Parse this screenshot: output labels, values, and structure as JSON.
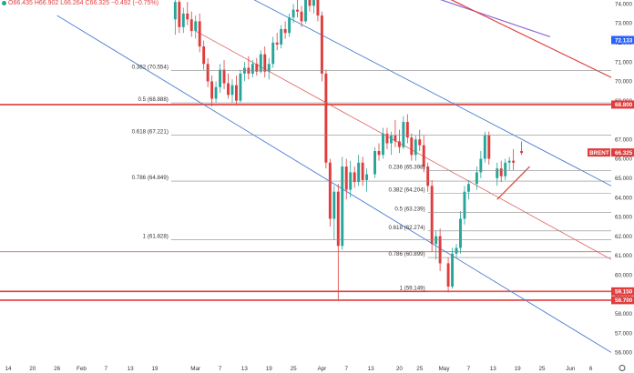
{
  "ohlc_bar": {
    "open": "O66.435",
    "high": "H66.902",
    "low": "L66.264",
    "close": "C66.325",
    "change": "−0.492 (−0.75%)"
  },
  "chart_data": {
    "type": "candlestick",
    "symbol": "BRENT",
    "last_price": "66.325",
    "y_range": [
      55.5,
      74.2
    ],
    "y_ticks": [
      "74.000",
      "73.000",
      "72.000",
      "71.000",
      "70.000",
      "69.000",
      "67.000",
      "66.000",
      "65.000",
      "64.000",
      "63.000",
      "62.000",
      "61.000",
      "60.000",
      "59.000",
      "58.000",
      "57.000",
      "56.000"
    ],
    "x_labels": [
      {
        "label": "14",
        "day": 0
      },
      {
        "label": "20",
        "day": 6
      },
      {
        "label": "26",
        "day": 12
      },
      {
        "label": "Feb",
        "day": 18
      },
      {
        "label": "7",
        "day": 24
      },
      {
        "label": "13",
        "day": 30
      },
      {
        "label": "19",
        "day": 36
      },
      {
        "label": "Mar",
        "day": 46
      },
      {
        "label": "7",
        "day": 52
      },
      {
        "label": "13",
        "day": 58
      },
      {
        "label": "19",
        "day": 64
      },
      {
        "label": "25",
        "day": 70
      },
      {
        "label": "Apr",
        "day": 77
      },
      {
        "label": "7",
        "day": 83
      },
      {
        "label": "13",
        "day": 89
      },
      {
        "label": "20",
        "day": 96
      },
      {
        "label": "25",
        "day": 101
      },
      {
        "label": "May",
        "day": 107
      },
      {
        "label": "7",
        "day": 113
      },
      {
        "label": "13",
        "day": 119
      },
      {
        "label": "19",
        "day": 125
      },
      {
        "label": "25",
        "day": 131
      },
      {
        "label": "Jun",
        "day": 138
      },
      {
        "label": "6",
        "day": 143
      }
    ],
    "x_range": [
      -2,
      148
    ],
    "price_tags": [
      {
        "label": "72.133",
        "value": 72.133,
        "color": "#2962ff"
      },
      {
        "label": "68.800",
        "value": 68.8,
        "color": "#e03c3c"
      },
      {
        "label": "66.325",
        "value": 66.325,
        "color": "#e03c3c",
        "name": "BRENT"
      },
      {
        "label": "59.150",
        "value": 59.15,
        "color": "#e03c3c"
      },
      {
        "label": "58.700",
        "value": 58.7,
        "color": "#e03c3c"
      }
    ],
    "horizontal_lines": [
      {
        "value": 68.8,
        "color": "#e03c3c",
        "width": 1.6
      },
      {
        "value": 59.15,
        "color": "#e03c3c",
        "width": 1.6
      },
      {
        "value": 58.7,
        "color": "#e03c3c",
        "width": 1.6
      },
      {
        "value": 61.2,
        "color": "#e06060",
        "width": 0.8
      }
    ],
    "fib_left": {
      "x_start": 40,
      "x_end": 148,
      "levels": [
        {
          "label": "0.382 (70.554)",
          "value": 70.554
        },
        {
          "label": "0.5 (68.888)",
          "value": 68.888
        },
        {
          "label": "0.618 (67.221)",
          "value": 67.221
        },
        {
          "label": "0.786 (64.849)",
          "value": 64.849
        },
        {
          "label": "1 (61.828)",
          "value": 61.828
        }
      ]
    },
    "fib_right": {
      "x_start": 103,
      "x_end": 148,
      "levels": [
        {
          "label": "0.236 (65.398)",
          "value": 65.398
        },
        {
          "label": "0.382 (64.204)",
          "value": 64.204
        },
        {
          "label": "0.5 (63.239)",
          "value": 63.239
        },
        {
          "label": "0.618 (62.274)",
          "value": 62.274
        },
        {
          "label": "0.786 (60.899)",
          "value": 60.899
        },
        {
          "label": "1 (59.149)",
          "value": 59.149
        }
      ]
    },
    "trend_lines": [
      {
        "x1": 12,
        "y1": 73.4,
        "x2": 148,
        "y2": 56.0,
        "color": "#4a7fd4",
        "width": 0.9
      },
      {
        "x1": 55,
        "y1": 74.8,
        "x2": 148,
        "y2": 64.6,
        "color": "#4a7fd4",
        "width": 0.9
      },
      {
        "x1": 46,
        "y1": 72.6,
        "x2": 148,
        "y2": 60.8,
        "color": "#e06060",
        "width": 0.8
      },
      {
        "x1": 98,
        "y1": 74.8,
        "x2": 133,
        "y2": 72.3,
        "color": "#8e6ad8",
        "width": 1.2
      },
      {
        "x1": 103,
        "y1": 74.8,
        "x2": 148,
        "y2": 70.2,
        "color": "#e03c3c",
        "width": 1.2
      },
      {
        "x1": 120,
        "y1": 63.9,
        "x2": 128,
        "y2": 65.6,
        "color": "#e03c3c",
        "width": 1.2
      }
    ],
    "candles": [
      {
        "d": 41,
        "o": 73.2,
        "h": 74.5,
        "l": 72.4,
        "c": 74.1
      },
      {
        "d": 42,
        "o": 74.1,
        "h": 74.6,
        "l": 72.5,
        "c": 72.8
      },
      {
        "d": 43,
        "o": 72.8,
        "h": 73.8,
        "l": 72.5,
        "c": 73.5
      },
      {
        "d": 44,
        "o": 73.5,
        "h": 74.1,
        "l": 72.9,
        "c": 73.2
      },
      {
        "d": 45,
        "o": 73.2,
        "h": 73.6,
        "l": 72.3,
        "c": 72.6
      },
      {
        "d": 46,
        "o": 72.6,
        "h": 73.4,
        "l": 72.2,
        "c": 73.1
      },
      {
        "d": 47,
        "o": 73.1,
        "h": 73.5,
        "l": 71.5,
        "c": 71.8
      },
      {
        "d": 48,
        "o": 71.8,
        "h": 72.1,
        "l": 70.6,
        "c": 70.9
      },
      {
        "d": 49,
        "o": 70.9,
        "h": 71.2,
        "l": 69.7,
        "c": 70.0
      },
      {
        "d": 50,
        "o": 70.0,
        "h": 70.3,
        "l": 68.7,
        "c": 69.1
      },
      {
        "d": 51,
        "o": 69.1,
        "h": 70.0,
        "l": 68.9,
        "c": 69.7
      },
      {
        "d": 52,
        "o": 69.7,
        "h": 70.9,
        "l": 69.4,
        "c": 70.6
      },
      {
        "d": 53,
        "o": 70.6,
        "h": 71.1,
        "l": 69.6,
        "c": 69.9
      },
      {
        "d": 54,
        "o": 69.9,
        "h": 70.4,
        "l": 69.1,
        "c": 69.3
      },
      {
        "d": 55,
        "o": 69.3,
        "h": 70.1,
        "l": 68.9,
        "c": 69.8
      },
      {
        "d": 56,
        "o": 69.8,
        "h": 70.3,
        "l": 68.8,
        "c": 69.0
      },
      {
        "d": 57,
        "o": 69.0,
        "h": 70.6,
        "l": 68.9,
        "c": 70.4
      },
      {
        "d": 58,
        "o": 70.4,
        "h": 71.0,
        "l": 70.0,
        "c": 70.7
      },
      {
        "d": 59,
        "o": 70.7,
        "h": 71.3,
        "l": 70.1,
        "c": 70.4
      },
      {
        "d": 60,
        "o": 70.4,
        "h": 71.1,
        "l": 70.2,
        "c": 70.9
      },
      {
        "d": 61,
        "o": 70.9,
        "h": 71.2,
        "l": 70.3,
        "c": 70.5
      },
      {
        "d": 62,
        "o": 70.5,
        "h": 71.6,
        "l": 70.4,
        "c": 71.4
      },
      {
        "d": 63,
        "o": 71.4,
        "h": 71.8,
        "l": 70.2,
        "c": 70.5
      },
      {
        "d": 64,
        "o": 70.5,
        "h": 71.2,
        "l": 70.1,
        "c": 70.9
      },
      {
        "d": 65,
        "o": 70.9,
        "h": 72.3,
        "l": 70.7,
        "c": 72.0
      },
      {
        "d": 66,
        "o": 72.0,
        "h": 72.5,
        "l": 71.6,
        "c": 71.9
      },
      {
        "d": 67,
        "o": 71.9,
        "h": 72.9,
        "l": 71.7,
        "c": 72.7
      },
      {
        "d": 68,
        "o": 72.7,
        "h": 73.1,
        "l": 72.2,
        "c": 72.5
      },
      {
        "d": 69,
        "o": 72.5,
        "h": 73.5,
        "l": 72.3,
        "c": 73.3
      },
      {
        "d": 70,
        "o": 73.3,
        "h": 74.0,
        "l": 73.0,
        "c": 73.7
      },
      {
        "d": 71,
        "o": 73.7,
        "h": 74.2,
        "l": 73.3,
        "c": 73.6
      },
      {
        "d": 72,
        "o": 73.6,
        "h": 73.9,
        "l": 72.8,
        "c": 73.1
      },
      {
        "d": 73,
        "o": 73.1,
        "h": 74.5,
        "l": 73.0,
        "c": 74.3
      },
      {
        "d": 74,
        "o": 74.3,
        "h": 74.6,
        "l": 73.6,
        "c": 73.9
      },
      {
        "d": 75,
        "o": 73.9,
        "h": 74.4,
        "l": 73.5,
        "c": 74.2
      },
      {
        "d": 76,
        "o": 74.2,
        "h": 74.6,
        "l": 73.1,
        "c": 73.4
      },
      {
        "d": 77,
        "o": 73.4,
        "h": 73.6,
        "l": 70.0,
        "c": 70.4
      },
      {
        "d": 78,
        "o": 70.4,
        "h": 70.6,
        "l": 65.5,
        "c": 65.8
      },
      {
        "d": 79,
        "o": 65.8,
        "h": 66.0,
        "l": 62.5,
        "c": 62.9
      },
      {
        "d": 80,
        "o": 62.9,
        "h": 64.6,
        "l": 61.8,
        "c": 64.3
      },
      {
        "d": 81,
        "o": 64.3,
        "h": 64.7,
        "l": 58.7,
        "c": 61.5
      },
      {
        "d": 82,
        "o": 61.5,
        "h": 66.1,
        "l": 61.3,
        "c": 65.6
      },
      {
        "d": 83,
        "o": 65.6,
        "h": 66.0,
        "l": 63.9,
        "c": 64.4
      },
      {
        "d": 84,
        "o": 64.4,
        "h": 65.9,
        "l": 64.0,
        "c": 65.3
      },
      {
        "d": 85,
        "o": 65.3,
        "h": 65.6,
        "l": 64.5,
        "c": 64.8
      },
      {
        "d": 86,
        "o": 64.8,
        "h": 66.2,
        "l": 64.6,
        "c": 65.8
      },
      {
        "d": 87,
        "o": 65.8,
        "h": 66.1,
        "l": 64.6,
        "c": 64.9
      },
      {
        "d": 88,
        "o": 64.9,
        "h": 65.5,
        "l": 64.3,
        "c": 65.2
      },
      {
        "d": 90,
        "o": 65.2,
        "h": 66.6,
        "l": 65.0,
        "c": 66.4
      },
      {
        "d": 91,
        "o": 66.4,
        "h": 66.8,
        "l": 65.9,
        "c": 66.2
      },
      {
        "d": 92,
        "o": 66.2,
        "h": 67.6,
        "l": 66.0,
        "c": 67.3
      },
      {
        "d": 93,
        "o": 67.3,
        "h": 67.6,
        "l": 66.5,
        "c": 66.8
      },
      {
        "d": 94,
        "o": 66.8,
        "h": 67.4,
        "l": 66.2,
        "c": 67.2
      },
      {
        "d": 95,
        "o": 67.2,
        "h": 68.0,
        "l": 66.6,
        "c": 66.9
      },
      {
        "d": 96,
        "o": 66.9,
        "h": 67.5,
        "l": 66.3,
        "c": 66.6
      },
      {
        "d": 97,
        "o": 66.6,
        "h": 68.2,
        "l": 66.5,
        "c": 67.9
      },
      {
        "d": 98,
        "o": 67.9,
        "h": 68.3,
        "l": 66.8,
        "c": 67.1
      },
      {
        "d": 99,
        "o": 67.1,
        "h": 67.3,
        "l": 65.9,
        "c": 66.2
      },
      {
        "d": 100,
        "o": 66.2,
        "h": 67.2,
        "l": 65.9,
        "c": 67.0
      },
      {
        "d": 101,
        "o": 67.0,
        "h": 67.5,
        "l": 66.4,
        "c": 66.7
      },
      {
        "d": 102,
        "o": 66.7,
        "h": 67.2,
        "l": 65.3,
        "c": 65.6
      },
      {
        "d": 103,
        "o": 65.6,
        "h": 65.8,
        "l": 64.3,
        "c": 64.6
      },
      {
        "d": 104,
        "o": 64.6,
        "h": 64.9,
        "l": 61.2,
        "c": 61.6
      },
      {
        "d": 105,
        "o": 61.6,
        "h": 62.3,
        "l": 60.8,
        "c": 62.0
      },
      {
        "d": 106,
        "o": 62.0,
        "h": 62.4,
        "l": 60.2,
        "c": 60.6
      },
      {
        "d": 108,
        "o": 60.6,
        "h": 60.9,
        "l": 59.1,
        "c": 59.4
      },
      {
        "d": 109,
        "o": 59.4,
        "h": 61.4,
        "l": 59.3,
        "c": 61.1
      },
      {
        "d": 110,
        "o": 61.1,
        "h": 61.6,
        "l": 60.9,
        "c": 61.4
      },
      {
        "d": 111,
        "o": 61.4,
        "h": 63.3,
        "l": 61.1,
        "c": 62.9
      },
      {
        "d": 112,
        "o": 62.9,
        "h": 64.6,
        "l": 62.6,
        "c": 64.3
      },
      {
        "d": 113,
        "o": 64.3,
        "h": 64.9,
        "l": 63.9,
        "c": 64.7
      },
      {
        "d": 115,
        "o": 64.7,
        "h": 65.6,
        "l": 64.4,
        "c": 65.3
      },
      {
        "d": 116,
        "o": 65.3,
        "h": 66.4,
        "l": 65.0,
        "c": 66.0
      },
      {
        "d": 117,
        "o": 66.0,
        "h": 67.4,
        "l": 65.8,
        "c": 67.2
      },
      {
        "d": 118,
        "o": 67.2,
        "h": 67.4,
        "l": 65.7,
        "c": 66.0
      },
      {
        "d": 120,
        "o": 65.0,
        "h": 65.8,
        "l": 64.6,
        "c": 65.5
      },
      {
        "d": 121,
        "o": 65.5,
        "h": 65.9,
        "l": 64.8,
        "c": 65.1
      },
      {
        "d": 122,
        "o": 65.1,
        "h": 66.0,
        "l": 64.9,
        "c": 65.8
      },
      {
        "d": 123,
        "o": 65.8,
        "h": 66.1,
        "l": 65.4,
        "c": 65.9
      },
      {
        "d": 124,
        "o": 65.9,
        "h": 66.5,
        "l": 65.4,
        "c": 65.8
      },
      {
        "d": 126,
        "o": 66.4,
        "h": 66.9,
        "l": 66.2,
        "c": 66.3
      }
    ],
    "grid": false
  }
}
